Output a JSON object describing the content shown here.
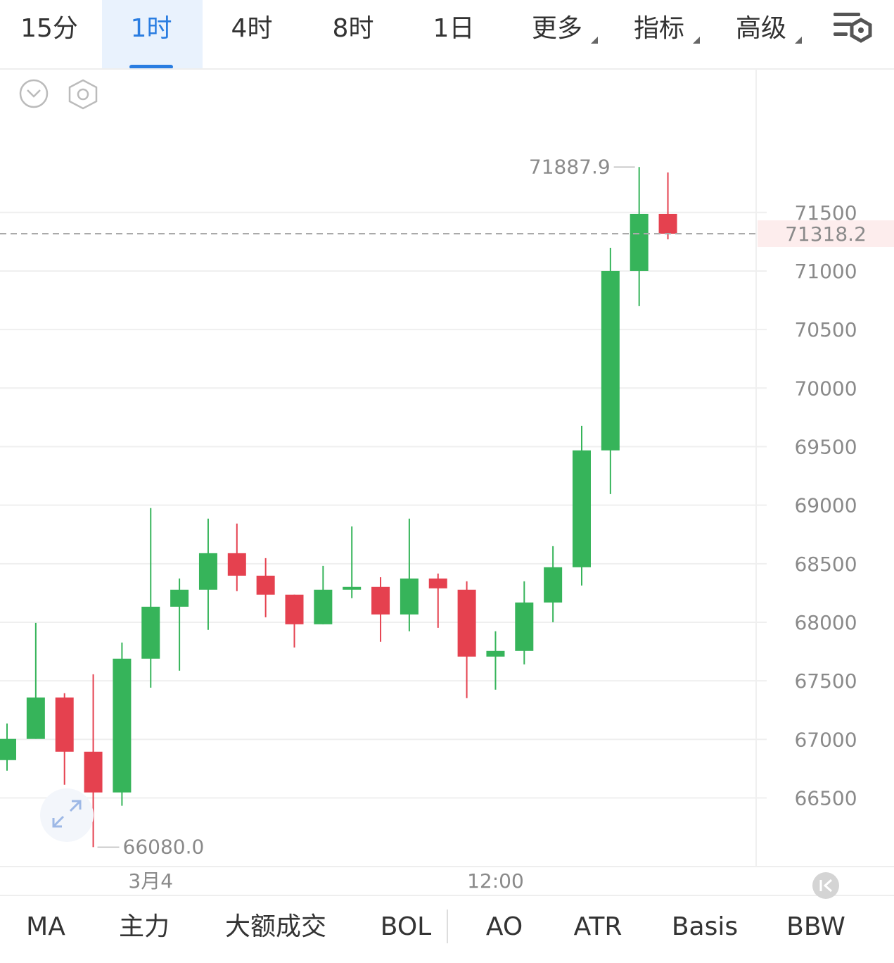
{
  "tabs": [
    "15分",
    "1时",
    "4时",
    "8时",
    "1日",
    "更多",
    "指标",
    "高级"
  ],
  "active_tab": 1,
  "indicators": [
    "MA",
    "主力",
    "大额成交",
    "BOL",
    "AO",
    "ATR",
    "Basis",
    "BBW"
  ],
  "chart_data": {
    "type": "candlestick",
    "categories": [
      null,
      null,
      null,
      null,
      null,
      "3月4",
      null,
      null,
      null,
      null,
      null,
      null,
      null,
      null,
      null,
      null,
      null,
      "12:00",
      null,
      null,
      null,
      null,
      null,
      null
    ],
    "open": [
      66823,
      67004,
      67358,
      66895,
      66547,
      67689,
      68133,
      68278,
      68590,
      68398,
      68236,
      67983,
      68278,
      68302,
      68067,
      68374,
      68278,
      67707,
      67755,
      68169,
      68470,
      69468,
      71000,
      71487
    ],
    "high": [
      67136,
      67995,
      67394,
      67556,
      67827,
      68975,
      68374,
      68885,
      68843,
      68548,
      68236,
      68482,
      68819,
      68385,
      68885,
      68416,
      68350,
      67923,
      68350,
      68650,
      69678,
      71198,
      71887.9,
      71841
    ],
    "low": [
      66733,
      67004,
      66613,
      66080,
      66433,
      67442,
      67587,
      67935,
      68266,
      68043,
      67785,
      67983,
      68206,
      67833,
      67923,
      67953,
      67352,
      67424,
      67641,
      68001,
      68314,
      69095,
      70700,
      71270
    ],
    "close": [
      67004,
      67358,
      66895,
      66547,
      67689,
      68133,
      68278,
      68590,
      68398,
      68236,
      67983,
      68278,
      68302,
      68067,
      68374,
      68290,
      67707,
      67755,
      68169,
      68470,
      69468,
      71000,
      71487,
      71318.2
    ],
    "up_color": "#36b45a",
    "down_color": "#e5414f",
    "ylim": [
      65920,
      72725
    ],
    "yticks": [
      66500,
      67000,
      67500,
      68000,
      68500,
      69000,
      69500,
      70000,
      70500,
      71000,
      71500
    ],
    "grid": true,
    "high_label": 71887.9,
    "low_label": {
      "value": 66080,
      "label": "66080.0"
    },
    "last_price": 71318.2
  }
}
